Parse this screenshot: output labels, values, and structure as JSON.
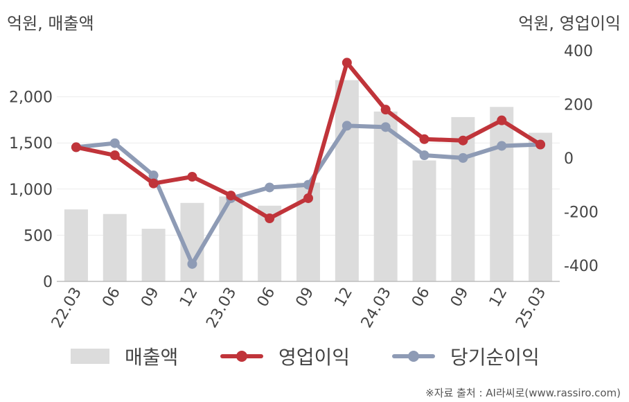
{
  "units": {
    "left": "억원, 매출액",
    "right": "억원, 영업이익"
  },
  "legend": {
    "sales": "매출액",
    "op": "영업이익",
    "net": "당기순이익"
  },
  "source": "※자료 출처 : AI라씨로(www.rassiro.com)",
  "colors": {
    "sales": "#dcdcdc",
    "op": "#c0343a",
    "net": "#8e9bb5"
  },
  "chart_data": {
    "type": "bar+line",
    "categories": [
      "22.03",
      "06",
      "09",
      "12",
      "23.03",
      "06",
      "09",
      "12",
      "24.03",
      "06",
      "09",
      "12",
      "25.03"
    ],
    "left_axis": {
      "min": 0,
      "max": 2500,
      "ticks": [
        0,
        500,
        1000,
        1500,
        2000
      ],
      "tick_labels": [
        "0",
        "500",
        "1,000",
        "1,500",
        "2,000"
      ]
    },
    "right_axis": {
      "min": -460,
      "max": 400,
      "ticks": [
        -400,
        -200,
        0,
        200,
        400
      ],
      "tick_labels": [
        "-400",
        "-200",
        "0",
        "200",
        "400"
      ]
    },
    "grid": true,
    "legend_position": "bottom",
    "series": [
      {
        "name": "매출액",
        "kind": "bar",
        "axis": "left",
        "values": [
          780,
          730,
          570,
          850,
          920,
          820,
          1070,
          2180,
          1840,
          1310,
          1780,
          1890,
          1610
        ]
      },
      {
        "name": "영업이익",
        "kind": "line",
        "axis": "right",
        "values": [
          40,
          10,
          -95,
          -70,
          -140,
          -225,
          -150,
          355,
          180,
          70,
          65,
          140,
          50
        ]
      },
      {
        "name": "당기순이익",
        "kind": "line",
        "axis": "right",
        "values": [
          40,
          55,
          -65,
          -395,
          -150,
          -110,
          -100,
          120,
          115,
          10,
          0,
          45,
          50
        ]
      }
    ]
  }
}
